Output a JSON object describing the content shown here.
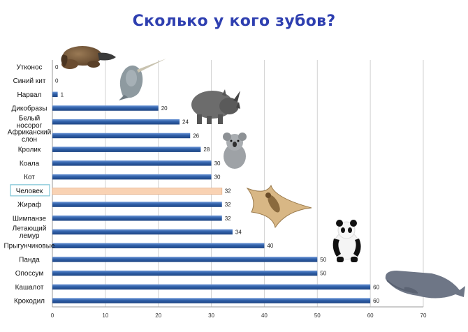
{
  "chart_data": {
    "type": "bar",
    "orientation": "horizontal",
    "title": "Сколько у кого зубов?",
    "xlabel": "",
    "ylabel": "",
    "xlim": [
      0,
      70
    ],
    "xticks": [
      0,
      10,
      20,
      30,
      40,
      50,
      60,
      70
    ],
    "grid": true,
    "legend": "none",
    "categories": [
      [
        "Утконос"
      ],
      [
        "Синий кит"
      ],
      [
        "Нарвал"
      ],
      [
        "Дикобразы"
      ],
      [
        "Белый",
        "носорог"
      ],
      [
        "Африканский",
        "слон"
      ],
      [
        "Кролик"
      ],
      [
        "Коала"
      ],
      [
        "Кот"
      ],
      [
        "Человек"
      ],
      [
        "Жираф"
      ],
      [
        "Шимпанзе"
      ],
      [
        "Летающий",
        "лемур"
      ],
      [
        "Прыгунчиковые"
      ],
      [
        "Панда"
      ],
      [
        "Опоссум"
      ],
      [
        "Кашалот"
      ],
      [
        "Крокодил"
      ]
    ],
    "values": [
      0,
      0,
      1,
      20,
      24,
      26,
      28,
      30,
      30,
      32,
      32,
      32,
      34,
      40,
      50,
      50,
      60,
      60
    ],
    "highlight_index": 9,
    "colors": {
      "bar": "#2f5fa8",
      "bar_dark": "#1f4684",
      "bar_light": "#6b95d6",
      "highlight": "#f9d2b3",
      "highlight_border": "#e2ad86",
      "highlight_label_box": "#7fc4d6",
      "grid": "#d2d2d2",
      "title": "#2e3fb0"
    },
    "pictures": [
      "platypus-icon",
      "narwhal-icon",
      "rhinoceros-icon",
      "koala-icon",
      "flying-lemur-icon",
      "panda-icon",
      "sperm-whale-icon"
    ]
  }
}
